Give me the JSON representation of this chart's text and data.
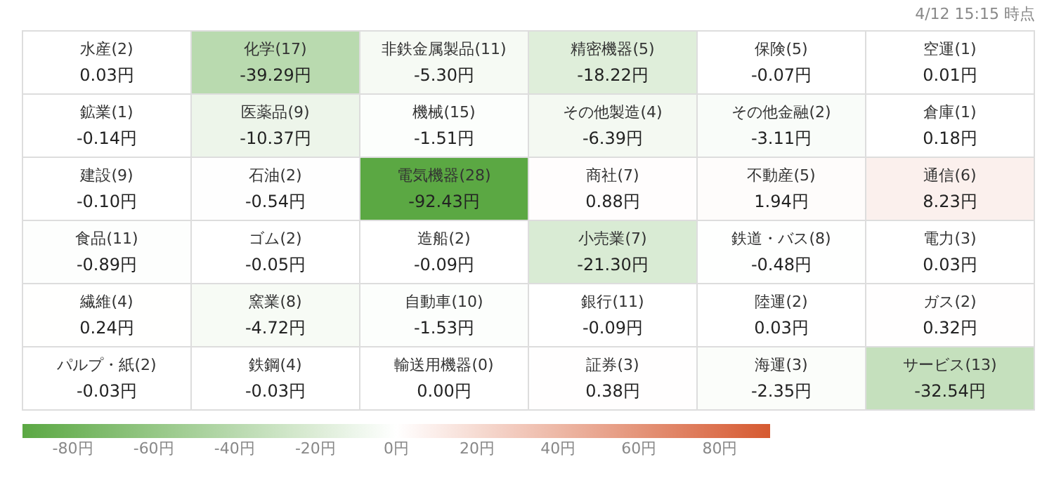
{
  "chart_data": {
    "type": "heatmap",
    "annotations": [
      "4/12 15:15 時点"
    ],
    "categories": [
      null,
      null,
      null,
      null,
      null,
      null
    ],
    "y_categories": [
      null,
      null,
      null,
      null,
      null,
      null
    ],
    "cells": [
      [
        0.03,
        -39.29,
        -5.3,
        -18.22,
        -0.07,
        0.01
      ],
      [
        -0.14,
        -10.37,
        -1.51,
        -6.39,
        -3.11,
        0.18
      ],
      [
        -0.1,
        -0.54,
        -92.43,
        0.88,
        1.94,
        8.23
      ],
      [
        -0.89,
        -0.05,
        -0.09,
        -21.3,
        -0.48,
        0.03
      ],
      [
        0.24,
        -4.72,
        -1.53,
        -0.09,
        0.03,
        0.32
      ],
      [
        -0.03,
        -0.03,
        0.0,
        0.38,
        -2.35,
        -32.54
      ]
    ],
    "cell_labels": [
      [
        "水産(2)\n0.03円",
        "化学(17)\n-39.29円",
        "非鉄金属製品(11)\n-5.30円",
        "精密機器(5)\n-18.22円",
        "保険(5)\n-0.07円",
        "空運(1)\n0.01円"
      ],
      [
        "鉱業(1)\n-0.14円",
        "医薬品(9)\n-10.37円",
        "機械(15)\n-1.51円",
        "その他製造(4)\n-6.39円",
        "その他金融(2)\n-3.11円",
        "倉庫(1)\n0.18円"
      ],
      [
        "建設(9)\n-0.10円",
        "石油(2)\n-0.54円",
        "電気機器(28)\n-92.43円",
        "商社(7)\n0.88円",
        "不動産(5)\n1.94円",
        "通信(6)\n8.23円"
      ],
      [
        "食品(11)\n-0.89円",
        "ゴム(2)\n-0.05円",
        "造船(2)\n-0.09円",
        "小売業(7)\n-21.30円",
        "鉄道・バス(8)\n-0.48円",
        "電力(3)\n0.03円"
      ],
      [
        "繊維(4)\n0.24円",
        "窯業(8)\n-4.72円",
        "自動車(10)\n-1.53円",
        "銀行(11)\n-0.09円",
        "陸運(2)\n0.03円",
        "ガス(2)\n0.32円"
      ],
      [
        "パルプ・紙(2)\n-0.03円",
        "鉄鋼(4)\n-0.03円",
        "輸送用機器(0)\n0.00円",
        "証券(3)\n0.38円",
        "海運(3)\n-2.35円",
        "サービス(13)\n-32.54円"
      ]
    ],
    "clim": [
      -92.43,
      92.43
    ],
    "cticks": [
      {
        "value": -80,
        "label": "-80円"
      },
      {
        "value": -60,
        "label": "-60円"
      },
      {
        "value": -40,
        "label": "-40円"
      },
      {
        "value": -20,
        "label": "-20円"
      },
      {
        "value": 0,
        "label": "0円"
      },
      {
        "value": 20,
        "label": "20円"
      },
      {
        "value": 40,
        "label": "40円"
      },
      {
        "value": 60,
        "label": "60円"
      },
      {
        "value": 80,
        "label": "80円"
      }
    ]
  }
}
